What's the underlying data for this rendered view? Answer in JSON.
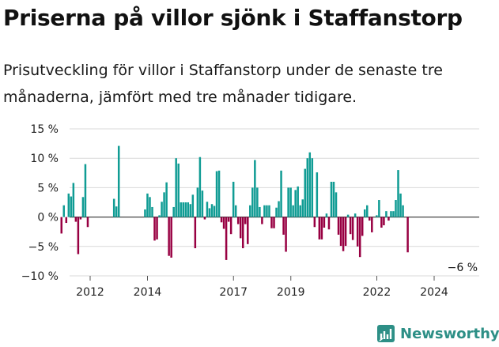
{
  "header": {
    "title": "Priserna på villor sjönk i Staffanstorp",
    "subtitle": "Prisutveckling för villor i Staffanstorp under de senaste tre månaderna, jämfört med tre månader tidigare."
  },
  "brand": {
    "name": "Newsworthy",
    "icon": "bar-chart-logo-icon",
    "color": "#2d8f86"
  },
  "chart_data": {
    "type": "bar",
    "title": "",
    "xlabel": "",
    "ylabel": "",
    "ylim": [
      -10,
      15
    ],
    "yticks": [
      15,
      10,
      5,
      0,
      -5,
      -10
    ],
    "ytick_labels": [
      "15 %",
      "10 %",
      "5 %",
      "0 %",
      "−5 %",
      "−10 %"
    ],
    "xticks": [
      2012,
      2014,
      2017,
      2019,
      2022,
      2024
    ],
    "x_start": 2011.0,
    "x_step": 0.0833,
    "grid": "horizontal",
    "colors": {
      "positive": "#109c94",
      "negative": "#980042"
    },
    "annotation": "−6 %",
    "values": [
      -2.8,
      2.0,
      -1.0,
      4.0,
      3.5,
      5.8,
      -0.8,
      -6.3,
      -0.4,
      3.4,
      9.0,
      -1.7,
      null,
      null,
      null,
      null,
      null,
      null,
      null,
      null,
      null,
      null,
      3.1,
      1.8,
      12.1,
      null,
      null,
      null,
      null,
      null,
      null,
      null,
      null,
      null,
      null,
      1.3,
      4.0,
      3.4,
      1.7,
      -4.0,
      -3.8,
      0.3,
      2.6,
      4.2,
      5.9,
      -6.6,
      -6.9,
      1.7,
      10.0,
      9.1,
      2.5,
      2.5,
      2.5,
      2.5,
      2.2,
      3.8,
      -5.3,
      5.0,
      10.2,
      4.5,
      -0.4,
      2.6,
      1.5,
      2.2,
      1.9,
      7.8,
      7.9,
      -0.9,
      -2.0,
      -7.3,
      -0.8,
      -2.9,
      6.0,
      2.0,
      -1.2,
      -3.6,
      -5.3,
      -1.2,
      -4.6,
      2.0,
      5.0,
      9.7,
      5.0,
      1.7,
      -1.2,
      2.0,
      2.0,
      2.0,
      -1.9,
      -1.9,
      1.6,
      2.7,
      7.9,
      -3.0,
      -5.9,
      5.0,
      5.0,
      2.0,
      4.6,
      5.2,
      2.0,
      3.0,
      8.2,
      10.0,
      11.0,
      10.0,
      -1.7,
      7.6,
      -3.8,
      -3.8,
      -1.8,
      0.6,
      -2.1,
      6.0,
      6.0,
      4.2,
      -3.0,
      -4.9,
      -5.8,
      -4.9,
      0.4,
      -2.9,
      -3.9,
      0.6,
      -5.0,
      -6.8,
      -3.2,
      1.3,
      2.0,
      -0.6,
      -2.6,
      null,
      0.3,
      2.9,
      -1.8,
      -1.4,
      1.0,
      -0.6,
      1.0,
      1.0,
      2.9,
      8.0,
      4.0,
      2.0,
      null,
      -6.0
    ]
  }
}
